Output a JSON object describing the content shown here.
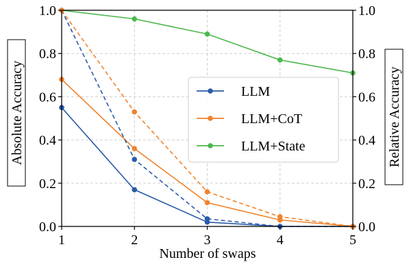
{
  "chart_data": {
    "type": "line",
    "x": [
      1,
      2,
      3,
      4,
      5
    ],
    "xlabel": "Number of swaps",
    "ylabel_left": "Absolute Accuracy",
    "ylabel_right": "Relative Accuracy",
    "xlim": [
      1,
      5
    ],
    "ylim": [
      0,
      1
    ],
    "x_ticks": [
      "1",
      "2",
      "3",
      "4",
      "5"
    ],
    "y_ticks": [
      "0.0",
      "0.2",
      "0.4",
      "0.6",
      "0.8",
      "1.0"
    ],
    "grid": true,
    "legend_position": "right",
    "series": [
      {
        "name": "LLM",
        "axis": "left",
        "style": "solid",
        "color": "#2a5ba8",
        "values": [
          0.55,
          0.17,
          0.02,
          0.0,
          0.0
        ]
      },
      {
        "name": "LLM+CoT",
        "axis": "left",
        "style": "solid",
        "color": "#f0832c",
        "values": [
          0.68,
          0.36,
          0.11,
          0.03,
          0.0
        ]
      },
      {
        "name": "LLM+State",
        "axis": "left",
        "style": "solid",
        "color": "#4cb84c",
        "values": [
          1.0,
          0.96,
          0.89,
          0.77,
          0.71
        ]
      },
      {
        "axis": "right",
        "style": "dashed",
        "color": "#2a5ba8",
        "values": [
          1.0,
          0.31,
          0.035,
          0.0,
          0.0
        ]
      },
      {
        "axis": "right",
        "style": "dashed",
        "color": "#f0832c",
        "values": [
          1.0,
          0.53,
          0.16,
          0.045,
          0.0
        ]
      }
    ]
  }
}
